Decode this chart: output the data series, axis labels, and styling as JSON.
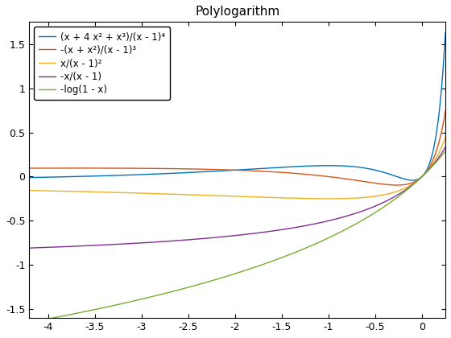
{
  "title": "Polylogarithm",
  "xlim": [
    -4.2,
    0.25
  ],
  "ylim": [
    -1.6,
    1.75
  ],
  "xticks": [
    -4,
    -3.5,
    -3,
    -2.5,
    -2,
    -1.5,
    -1,
    -0.5,
    0
  ],
  "yticks": [
    -1.5,
    -1,
    -0.5,
    0,
    0.5,
    1,
    1.5
  ],
  "lines": [
    {
      "label": "(x + 4 x² + x³)/(x - 1)⁴",
      "color": "#0072BD",
      "func": "li_n3"
    },
    {
      "label": "-(x + x²)/(x - 1)³",
      "color": "#D95319",
      "func": "li_n2"
    },
    {
      "label": "x/(x - 1)²",
      "color": "#EDB120",
      "func": "li_n1"
    },
    {
      "label": "-x/(x - 1)",
      "color": "#7E2F8E",
      "func": "li_0"
    },
    {
      "label": "-log(1 - x)",
      "color": "#77AC30",
      "func": "li_1"
    }
  ],
  "bg_color": "#FFFFFF",
  "linewidth": 1.0,
  "legend_fontsize": 8.5,
  "title_fontsize": 11
}
